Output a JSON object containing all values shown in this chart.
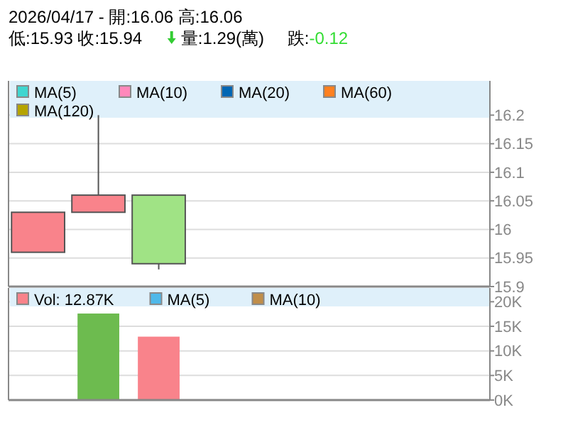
{
  "chart_data": [
    {
      "type": "candlestick",
      "title": "2026/04/17 - 開:16.06 高:16.06",
      "subtitle": "低:15.93 收:15.94",
      "annotations": [
        "量:1.29(萬)",
        "跌:-0.12"
      ],
      "categories": [
        null,
        null,
        null,
        null,
        null,
        null,
        null,
        null
      ],
      "ohlc": [
        [
          15.96,
          16.03,
          15.96,
          16.03
        ],
        [
          16.03,
          16.2,
          16.03,
          16.06
        ],
        [
          16.06,
          16.06,
          15.93,
          15.94
        ],
        null,
        null,
        null,
        null,
        null
      ],
      "colors": [
        "#f9838b",
        "#f9838b",
        "#a0e385",
        null,
        null,
        null,
        null,
        null
      ],
      "series": [
        {
          "name": "MA(5)",
          "type": "line",
          "color": "#3fd6d0",
          "values": [
            null,
            null,
            null,
            null,
            null,
            null,
            null,
            null
          ]
        },
        {
          "name": "MA(10)",
          "type": "line",
          "color": "#ff88bb",
          "values": [
            null,
            null,
            null,
            null,
            null,
            null,
            null,
            null
          ]
        },
        {
          "name": "MA(20)",
          "type": "line",
          "color": "#0066b3",
          "values": [
            null,
            null,
            null,
            null,
            null,
            null,
            null,
            null
          ]
        },
        {
          "name": "MA(60)",
          "type": "line",
          "color": "#ff8020",
          "values": [
            null,
            null,
            null,
            null,
            null,
            null,
            null,
            null
          ]
        },
        {
          "name": "MA(120)",
          "type": "line",
          "color": "#b5a400",
          "values": [
            null,
            null,
            null,
            null,
            null,
            null,
            null,
            null
          ]
        }
      ],
      "ylim": [
        15.9,
        16.26
      ],
      "yticks": [
        15.9,
        15.95,
        16,
        16.05,
        16.1,
        16.15,
        16.2
      ],
      "grid": "y",
      "legend": "top left",
      "tick_labels": "y"
    },
    {
      "type": "bar",
      "categories": [
        null,
        null,
        null,
        null,
        null,
        null,
        null,
        null
      ],
      "series": [
        {
          "name": "Vol: 12.87K",
          "type": "bar",
          "color": "#f9838b",
          "colors": [
            null,
            "#6dbb4f",
            "#f9838b",
            null,
            null,
            null,
            null,
            null
          ],
          "values": [
            null,
            17600,
            12900,
            null,
            null,
            null,
            null,
            null
          ]
        },
        {
          "name": "MA(5)",
          "type": "line",
          "color": "#4fb9ea",
          "values": [
            null,
            null,
            null,
            null,
            null,
            null,
            null,
            null
          ]
        },
        {
          "name": "MA(10)",
          "type": "line",
          "color": "#c08e4a",
          "values": [
            null,
            null,
            null,
            null,
            null,
            null,
            null,
            null
          ]
        }
      ],
      "ylim": [
        0,
        22800
      ],
      "yticks": [
        {
          "value": 0,
          "label": "0K"
        },
        {
          "value": 5000,
          "label": "5K"
        },
        {
          "value": 10000,
          "label": "10K"
        },
        {
          "value": 15000,
          "label": "15K"
        },
        {
          "value": 20000,
          "label": "20K"
        }
      ],
      "grid": "y",
      "legend": "top left",
      "tick_labels": "y"
    }
  ]
}
